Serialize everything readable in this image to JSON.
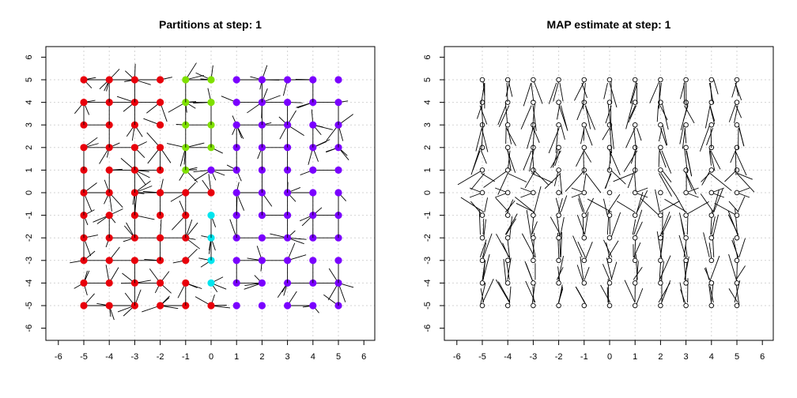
{
  "chart_data": [
    {
      "type": "scatter",
      "title": "Partitions at step:  1",
      "xlim": [
        -6,
        6
      ],
      "ylim": [
        -6,
        6
      ],
      "xticks": [
        -6,
        -5,
        -4,
        -3,
        -2,
        -1,
        0,
        1,
        2,
        3,
        4,
        5,
        6
      ],
      "yticks": [
        -6,
        -5,
        -4,
        -3,
        -2,
        -1,
        0,
        1,
        2,
        3,
        4,
        5,
        6
      ],
      "grid": true,
      "x": [
        -5,
        -4,
        -3,
        -2,
        -1,
        0,
        1,
        2,
        3,
        4,
        5
      ],
      "y": [
        -5,
        -4,
        -3,
        -2,
        -1,
        0,
        1,
        2,
        3,
        4,
        5
      ],
      "partition_colors": {
        "red": "#e8000b",
        "green": "#7fe000",
        "cyan": "#00e5ee",
        "purple": "#7a00ff"
      },
      "partitions": {
        "red": "x <= -2, plus x = -1 for y <= 0, plus (0,0) and (0,-5)",
        "green": "x = -1 for y >= 1, x = 0 for y >= 2",
        "cyan": "x = 0 for y in [-4,-1]",
        "purple": "x >= 1, plus (0,1)"
      }
    },
    {
      "type": "scatter",
      "title": "MAP estimate at step:  1",
      "xlim": [
        -6,
        6
      ],
      "ylim": [
        -6,
        6
      ],
      "xticks": [
        -6,
        -5,
        -4,
        -3,
        -2,
        -1,
        0,
        1,
        2,
        3,
        4,
        5,
        6
      ],
      "yticks": [
        -6,
        -5,
        -4,
        -3,
        -2,
        -1,
        0,
        1,
        2,
        3,
        4,
        5,
        6
      ],
      "grid": true,
      "x": [
        -5,
        -4,
        -3,
        -2,
        -1,
        0,
        1,
        2,
        3,
        4,
        5
      ],
      "y": [
        -5,
        -4,
        -3,
        -2,
        -1,
        0,
        1,
        2,
        3,
        4,
        5
      ],
      "point_style": "hollow circles with line segments"
    }
  ]
}
